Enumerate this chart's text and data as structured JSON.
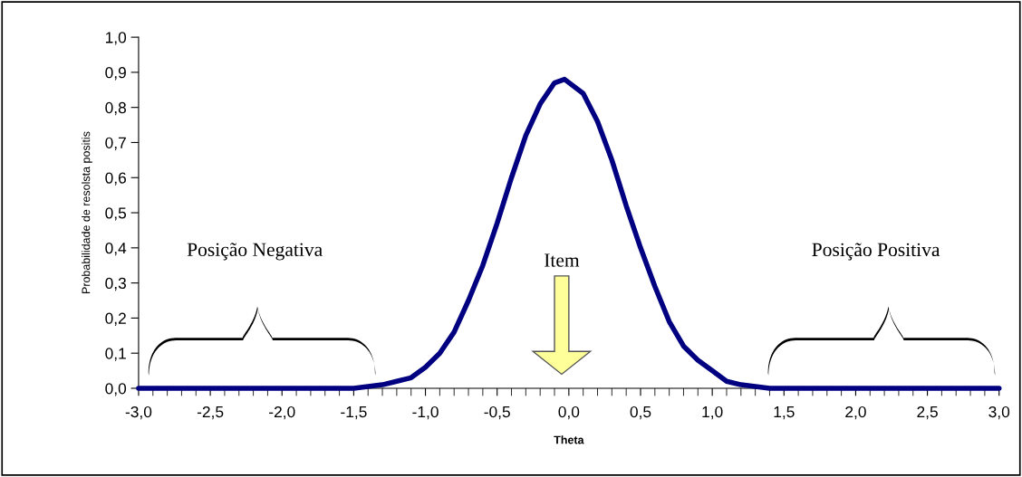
{
  "chart_data": {
    "type": "line",
    "xlabel": "Theta",
    "ylabel": "Probabilidade de resolsta positis",
    "annotations": [
      "Posição Negativa",
      "Item",
      "Posição Positiva"
    ],
    "series": [
      {
        "color": "#000080",
        "x": [
          -3.0,
          -2.0,
          -1.5,
          -1.3,
          -1.2,
          -1.1,
          -1.0,
          -0.9,
          -0.8,
          -0.7,
          -0.6,
          -0.5,
          -0.4,
          -0.3,
          -0.2,
          -0.1,
          -0.03,
          0.1,
          0.2,
          0.3,
          0.4,
          0.5,
          0.6,
          0.7,
          0.8,
          0.9,
          1.0,
          1.1,
          1.2,
          1.4,
          2.0,
          3.0
        ],
        "values": [
          0.0,
          0.0,
          0.0,
          0.01,
          0.02,
          0.03,
          0.06,
          0.1,
          0.16,
          0.25,
          0.35,
          0.47,
          0.6,
          0.72,
          0.81,
          0.87,
          0.88,
          0.84,
          0.76,
          0.65,
          0.52,
          0.4,
          0.29,
          0.19,
          0.12,
          0.08,
          0.05,
          0.02,
          0.01,
          0.0,
          0.0,
          0.0
        ]
      }
    ],
    "xlim": [
      -3.0,
      3.0
    ],
    "ylim": [
      0.0,
      1.0
    ],
    "xticks": [
      {
        "value": -3.0,
        "label": "-3,0"
      },
      {
        "value": -2.9,
        "label": null
      },
      {
        "value": -2.8,
        "label": null
      },
      {
        "value": -2.7,
        "label": null
      },
      {
        "value": -2.6,
        "label": null
      },
      {
        "value": -2.5,
        "label": "-2,5"
      },
      {
        "value": -2.4,
        "label": null
      },
      {
        "value": -2.3,
        "label": null
      },
      {
        "value": -2.2,
        "label": null
      },
      {
        "value": -2.1,
        "label": null
      },
      {
        "value": -2.0,
        "label": "-2,0"
      },
      {
        "value": -1.9,
        "label": null
      },
      {
        "value": -1.8,
        "label": null
      },
      {
        "value": -1.7,
        "label": null
      },
      {
        "value": -1.6,
        "label": null
      },
      {
        "value": -1.5,
        "label": "-1,5"
      },
      {
        "value": -1.4,
        "label": null
      },
      {
        "value": -1.3,
        "label": null
      },
      {
        "value": -1.2,
        "label": null
      },
      {
        "value": -1.1,
        "label": null
      },
      {
        "value": -1.0,
        "label": "-1,0"
      },
      {
        "value": -0.9,
        "label": null
      },
      {
        "value": -0.8,
        "label": null
      },
      {
        "value": -0.7,
        "label": null
      },
      {
        "value": -0.6,
        "label": null
      },
      {
        "value": -0.5,
        "label": "-0,5"
      },
      {
        "value": -0.4,
        "label": null
      },
      {
        "value": -0.3,
        "label": null
      },
      {
        "value": -0.2,
        "label": null
      },
      {
        "value": -0.1,
        "label": null
      },
      {
        "value": 0.0,
        "label": "0,0"
      },
      {
        "value": 0.1,
        "label": null
      },
      {
        "value": 0.2,
        "label": null
      },
      {
        "value": 0.3,
        "label": null
      },
      {
        "value": 0.4,
        "label": null
      },
      {
        "value": 0.5,
        "label": "0,5"
      },
      {
        "value": 0.6,
        "label": null
      },
      {
        "value": 0.7,
        "label": null
      },
      {
        "value": 0.8,
        "label": null
      },
      {
        "value": 0.9,
        "label": null
      },
      {
        "value": 1.0,
        "label": "1,0"
      },
      {
        "value": 1.1,
        "label": null
      },
      {
        "value": 1.2,
        "label": null
      },
      {
        "value": 1.3,
        "label": null
      },
      {
        "value": 1.4,
        "label": null
      },
      {
        "value": 1.5,
        "label": "1,5"
      },
      {
        "value": 1.6,
        "label": null
      },
      {
        "value": 1.7,
        "label": null
      },
      {
        "value": 1.8,
        "label": null
      },
      {
        "value": 1.9,
        "label": null
      },
      {
        "value": 2.0,
        "label": "2,0"
      },
      {
        "value": 2.1,
        "label": null
      },
      {
        "value": 2.2,
        "label": null
      },
      {
        "value": 2.3,
        "label": null
      },
      {
        "value": 2.4,
        "label": null
      },
      {
        "value": 2.5,
        "label": "2,5"
      },
      {
        "value": 2.6,
        "label": null
      },
      {
        "value": 2.7,
        "label": null
      },
      {
        "value": 2.8,
        "label": null
      },
      {
        "value": 2.9,
        "label": null
      },
      {
        "value": 3.0,
        "label": "3,0"
      }
    ],
    "yticks": [
      {
        "value": 0.0,
        "label": "0,0"
      },
      {
        "value": 0.1,
        "label": "0,1"
      },
      {
        "value": 0.2,
        "label": "0,2"
      },
      {
        "value": 0.3,
        "label": "0,3"
      },
      {
        "value": 0.4,
        "label": "0,4"
      },
      {
        "value": 0.5,
        "label": "0,5"
      },
      {
        "value": 0.6,
        "label": "0,6"
      },
      {
        "value": 0.7,
        "label": "0,7"
      },
      {
        "value": 0.8,
        "label": "0,8"
      },
      {
        "value": 0.9,
        "label": "0,9"
      },
      {
        "value": 1.0,
        "label": "1,0"
      }
    ],
    "grid": false,
    "legend": false,
    "marker": "none",
    "line_style": "solid"
  }
}
